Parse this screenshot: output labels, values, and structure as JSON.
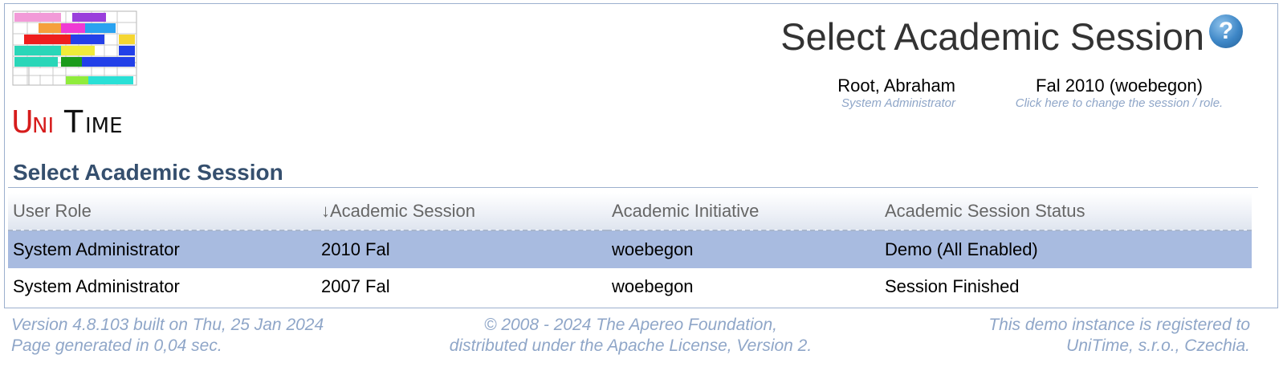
{
  "header": {
    "logo_text": "UniTime",
    "page_title": "Select Academic Session",
    "help_icon": "question-mark-icon"
  },
  "user": {
    "name": "Root, Abraham",
    "role": "System Administrator"
  },
  "session": {
    "name": "Fal 2010 (woebegon)",
    "hint": "Click here to change the session / role."
  },
  "section": {
    "title": "Select Academic Session"
  },
  "table": {
    "columns": [
      "User Role",
      "↓Academic Session",
      "Academic Initiative",
      "Academic Session Status"
    ],
    "rows": [
      {
        "role": "System Administrator",
        "session": "2010 Fal",
        "initiative": "woebegon",
        "status": "Demo (All Enabled)"
      },
      {
        "role": "System Administrator",
        "session": "2007 Fal",
        "initiative": "woebegon",
        "status": "Session Finished"
      }
    ]
  },
  "footer": {
    "version_line": "Version 4.8.103 built on Thu, 25 Jan 2024",
    "generated_line": "Page generated in 0,04 sec.",
    "copyright_line": "© 2008 - 2024 The Apereo Foundation,",
    "license_line": "distributed under the Apache License, Version 2.",
    "registered_line": "This demo instance is registered to",
    "registered_to": "UniTime, s.r.o., Czechia."
  },
  "colors": {
    "accent": "#354f6e",
    "selected_row": "#a8bbe0",
    "muted_text": "#8fa6c8",
    "border": "#9cb0ce"
  }
}
